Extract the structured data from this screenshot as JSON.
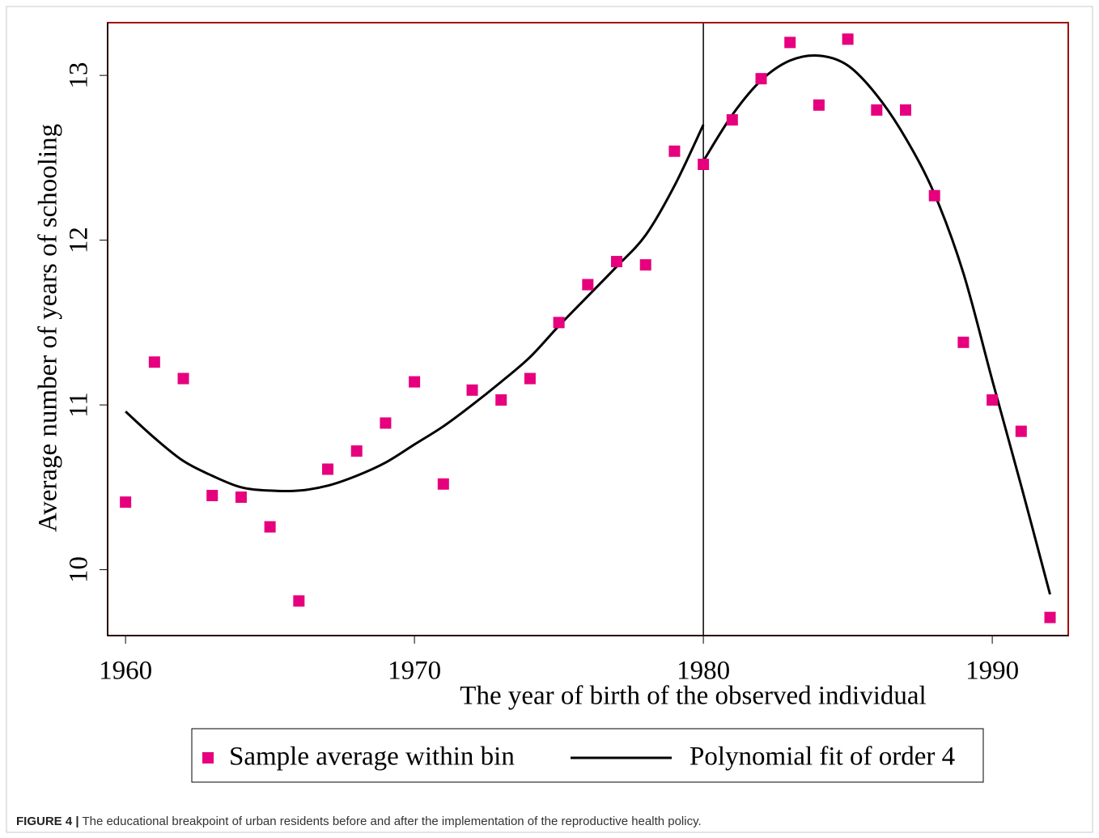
{
  "chart_data": {
    "type": "scatter",
    "x_label": "The year of birth of the observed individual",
    "y_label": "Average number of years of schooling",
    "xlim": [
      1959.38,
      1992.63
    ],
    "ylim": [
      9.6,
      13.32
    ],
    "xticks": [
      1960,
      1970,
      1980,
      1990
    ],
    "yticks": [
      10,
      11,
      12,
      13
    ],
    "cutoff": 1980,
    "series": [
      {
        "name": "Sample average within bin",
        "color": "#e6007e",
        "x": [
          1960,
          1961,
          1962,
          1963,
          1964,
          1965,
          1966,
          1967,
          1968,
          1969,
          1970,
          1971,
          1972,
          1973,
          1974,
          1975,
          1976,
          1977,
          1978,
          1979,
          1980,
          1981,
          1982,
          1983,
          1984,
          1985,
          1986,
          1987,
          1988,
          1989,
          1990,
          1991,
          1992
        ],
        "values": [
          10.41,
          11.26,
          11.16,
          10.45,
          10.44,
          10.26,
          9.81,
          10.61,
          10.72,
          10.89,
          11.14,
          10.52,
          11.09,
          11.03,
          11.16,
          11.5,
          11.73,
          11.87,
          11.85,
          12.54,
          12.46,
          12.73,
          12.98,
          13.2,
          12.82,
          13.22,
          12.79,
          12.79,
          12.27,
          11.38,
          11.03,
          10.84,
          9.71
        ]
      }
    ],
    "fit": {
      "name": "Polynomial fit of order 4",
      "color": "#000000",
      "segments": [
        {
          "x": [
            1960,
            1961,
            1962,
            1963,
            1964,
            1965,
            1966,
            1967,
            1968,
            1969,
            1970,
            1971,
            1972,
            1973,
            1974,
            1975,
            1976,
            1977,
            1978,
            1979,
            1980
          ],
          "values": [
            10.96,
            10.8,
            10.66,
            10.57,
            10.5,
            10.48,
            10.48,
            10.51,
            10.57,
            10.65,
            10.76,
            10.87,
            11.0,
            11.14,
            11.29,
            11.48,
            11.66,
            11.84,
            12.03,
            12.33,
            12.7
          ]
        },
        {
          "x": [
            1980,
            1981,
            1982,
            1983,
            1984,
            1985,
            1986,
            1987,
            1988,
            1989,
            1990,
            1991,
            1992
          ],
          "values": [
            12.48,
            12.76,
            12.97,
            13.09,
            13.12,
            13.06,
            12.88,
            12.62,
            12.28,
            11.8,
            11.15,
            10.51,
            9.85
          ]
        }
      ]
    },
    "caption_label": "FIGURE 4 |",
    "caption": "The educational breakpoint of urban residents before and after the implementation of the reproductive health policy."
  }
}
